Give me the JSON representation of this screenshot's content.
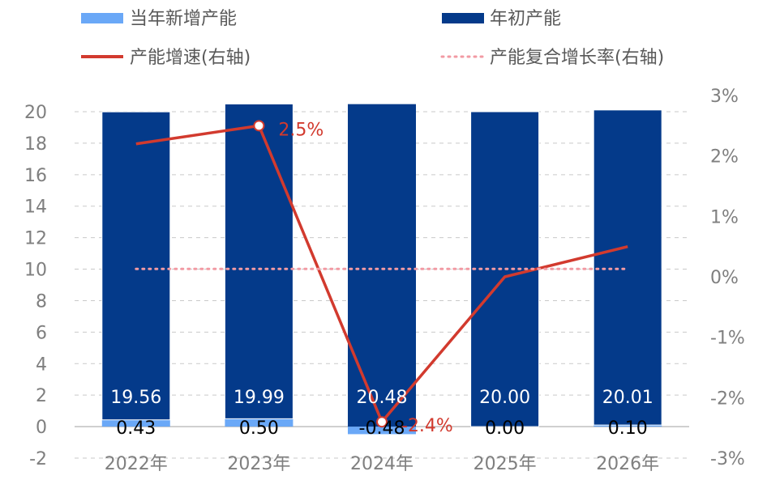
{
  "chart_data": {
    "type": "bar",
    "categories": [
      "2022年",
      "2023年",
      "2024年",
      "2025年",
      "2026年"
    ],
    "series": [
      {
        "name": "当年新增产能",
        "kind": "bar",
        "axis": "left",
        "color": "#6aa8f7",
        "values": [
          0.43,
          0.5,
          -0.48,
          0.0,
          0.1
        ],
        "labels": [
          "0.43",
          "0.50",
          "-0.48",
          "0.00",
          "0.10"
        ]
      },
      {
        "name": "年初产能",
        "kind": "bar",
        "axis": "left",
        "color": "#043a8a",
        "values": [
          19.56,
          19.99,
          20.48,
          20.0,
          20.01
        ],
        "labels": [
          "19.56",
          "19.99",
          "20.48",
          "20.00",
          "20.01"
        ]
      },
      {
        "name": "产能增速(右轴)",
        "kind": "line",
        "axis": "right",
        "color": "#d23a2e",
        "values": [
          2.2,
          2.5,
          -2.4,
          0.0,
          0.5
        ],
        "labels": [
          "",
          "2.5%",
          "-2.4%",
          "",
          ""
        ]
      },
      {
        "name": "产能复合增长率(右轴)",
        "kind": "dotted-line",
        "axis": "right",
        "color": "#f29aa3",
        "values": [
          0.13,
          0.13,
          0.13,
          0.13,
          0.13
        ]
      }
    ],
    "ylim": [
      -2,
      20
    ],
    "yticks": [
      "-2",
      "0",
      "2",
      "4",
      "6",
      "8",
      "10",
      "12",
      "14",
      "16",
      "18",
      "20"
    ],
    "y2lim": [
      -3,
      3
    ],
    "y2ticks": [
      "-3%",
      "-2%",
      "-1%",
      "0%",
      "1%",
      "2%",
      "3%"
    ],
    "grid": true,
    "legend_position": "top"
  }
}
